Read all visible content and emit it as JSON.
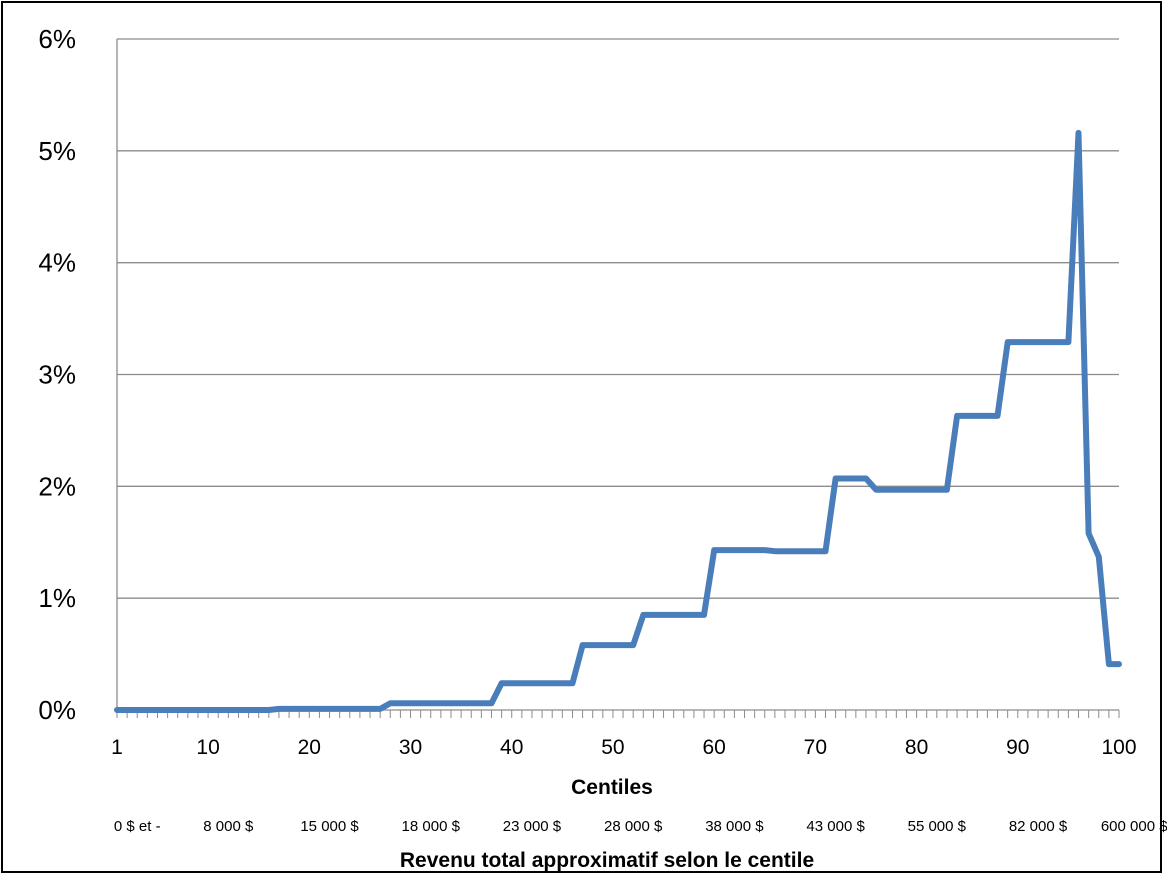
{
  "chart_data": {
    "type": "line",
    "title": "",
    "xlabel": "Centiles",
    "xlabel2": "Revenu total approximatif selon le centile",
    "ylabel": "",
    "xlim": [
      1,
      100
    ],
    "ylim": [
      0,
      6
    ],
    "grid": true,
    "legend": "none",
    "series_color": "#4a7ebb",
    "y_ticks": [
      {
        "value": 0,
        "label": "0%"
      },
      {
        "value": 1,
        "label": "1%"
      },
      {
        "value": 2,
        "label": "2%"
      },
      {
        "value": 3,
        "label": "3%"
      },
      {
        "value": 4,
        "label": "4%"
      },
      {
        "value": 5,
        "label": "5%"
      },
      {
        "value": 6,
        "label": "6%"
      }
    ],
    "x_ticks": [
      {
        "value": 1,
        "label": "1"
      },
      {
        "value": 10,
        "label": "10"
      },
      {
        "value": 20,
        "label": "20"
      },
      {
        "value": 30,
        "label": "30"
      },
      {
        "value": 40,
        "label": "40"
      },
      {
        "value": 50,
        "label": "50"
      },
      {
        "value": 60,
        "label": "60"
      },
      {
        "value": 70,
        "label": "70"
      },
      {
        "value": 80,
        "label": "80"
      },
      {
        "value": 90,
        "label": "90"
      },
      {
        "value": 100,
        "label": "100"
      }
    ],
    "income_labels": [
      {
        "centile": 3,
        "label": "0 $ et -"
      },
      {
        "centile": 12,
        "label": "8 000 $"
      },
      {
        "centile": 22,
        "label": "15 000 $"
      },
      {
        "centile": 32,
        "label": "18 000 $"
      },
      {
        "centile": 42,
        "label": "23 000 $"
      },
      {
        "centile": 52,
        "label": "28 000 $"
      },
      {
        "centile": 62,
        "label": "38 000 $"
      },
      {
        "centile": 72,
        "label": "43 000 $"
      },
      {
        "centile": 82,
        "label": "55 000 $"
      },
      {
        "centile": 92,
        "label": "82 000 $"
      },
      {
        "centile": 101.5,
        "label": "600 000 $"
      }
    ],
    "series": [
      {
        "name": "",
        "x": [
          1,
          2,
          3,
          4,
          5,
          6,
          7,
          8,
          9,
          10,
          11,
          12,
          13,
          14,
          15,
          16,
          17,
          18,
          19,
          20,
          21,
          22,
          23,
          24,
          25,
          26,
          27,
          28,
          29,
          30,
          31,
          32,
          33,
          34,
          35,
          36,
          37,
          38,
          39,
          40,
          41,
          42,
          43,
          44,
          45,
          46,
          47,
          48,
          49,
          50,
          51,
          52,
          53,
          54,
          55,
          56,
          57,
          58,
          59,
          60,
          61,
          62,
          63,
          64,
          65,
          66,
          67,
          68,
          69,
          70,
          71,
          72,
          73,
          74,
          75,
          76,
          77,
          78,
          79,
          80,
          81,
          82,
          83,
          84,
          85,
          86,
          87,
          88,
          89,
          90,
          91,
          92,
          93,
          94,
          95,
          96,
          97,
          98,
          99,
          100
        ],
        "y": [
          0,
          0,
          0,
          0,
          0,
          0,
          0,
          0,
          0,
          0,
          0,
          0,
          0,
          0,
          0,
          0,
          0.01,
          0.01,
          0.01,
          0.01,
          0.01,
          0.01,
          0.01,
          0.01,
          0.01,
          0.01,
          0.01,
          0.06,
          0.06,
          0.06,
          0.06,
          0.06,
          0.06,
          0.06,
          0.06,
          0.06,
          0.06,
          0.06,
          0.24,
          0.24,
          0.24,
          0.24,
          0.24,
          0.24,
          0.24,
          0.24,
          0.58,
          0.58,
          0.58,
          0.58,
          0.58,
          0.58,
          0.85,
          0.85,
          0.85,
          0.85,
          0.85,
          0.85,
          0.85,
          1.43,
          1.43,
          1.43,
          1.43,
          1.43,
          1.43,
          1.42,
          1.42,
          1.42,
          1.42,
          1.42,
          1.42,
          2.07,
          2.07,
          2.07,
          2.07,
          1.97,
          1.97,
          1.97,
          1.97,
          1.97,
          1.97,
          1.97,
          1.97,
          2.63,
          2.63,
          2.63,
          2.63,
          2.63,
          3.29,
          3.29,
          3.29,
          3.29,
          3.29,
          3.29,
          3.29,
          5.16,
          1.58,
          1.37,
          0.41,
          0.41
        ]
      }
    ]
  }
}
